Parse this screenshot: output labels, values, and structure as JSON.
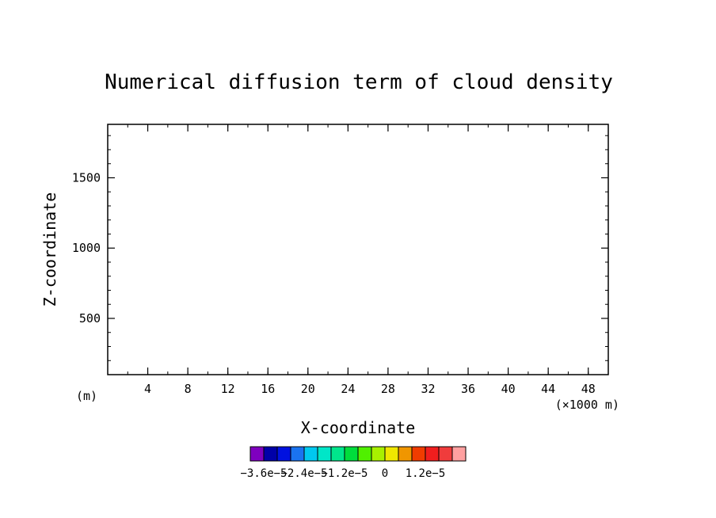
{
  "chart_data": {
    "type": "heatmap",
    "title": "Numerical diffusion term of cloud density",
    "xlabel": "X-coordinate",
    "ylabel": "Z-coordinate",
    "x_unit": "(m)",
    "x_multiplier": "(×1000 m)",
    "xlim": [
      0,
      50
    ],
    "ylim": [
      100,
      1880
    ],
    "x_ticks": [
      4,
      8,
      12,
      16,
      20,
      24,
      28,
      32,
      36,
      40,
      44,
      48
    ],
    "x_tick_labels": [
      "4",
      "8",
      "12",
      "16",
      "20",
      "24",
      "28",
      "32",
      "36",
      "40",
      "44",
      "48"
    ],
    "y_ticks": [
      500,
      1000,
      1500
    ],
    "y_tick_labels": [
      "500",
      "1000",
      "1500"
    ],
    "values": [],
    "colorbar": {
      "colors": [
        "#7f00bf",
        "#0000a8",
        "#0011e0",
        "#1a73f0",
        "#00c8f0",
        "#00e6c8",
        "#00e68c",
        "#00dd3c",
        "#50f000",
        "#a8f000",
        "#f0e600",
        "#f09600",
        "#f03c00",
        "#f01e1e",
        "#f03c3c",
        "#ffa0a0"
      ],
      "labels": [
        "−3.6e−5",
        "−2.4e−5",
        "−1.2e−5",
        "0",
        "1.2e−5"
      ],
      "label_box_index": [
        1,
        4,
        7,
        10,
        13
      ]
    }
  }
}
